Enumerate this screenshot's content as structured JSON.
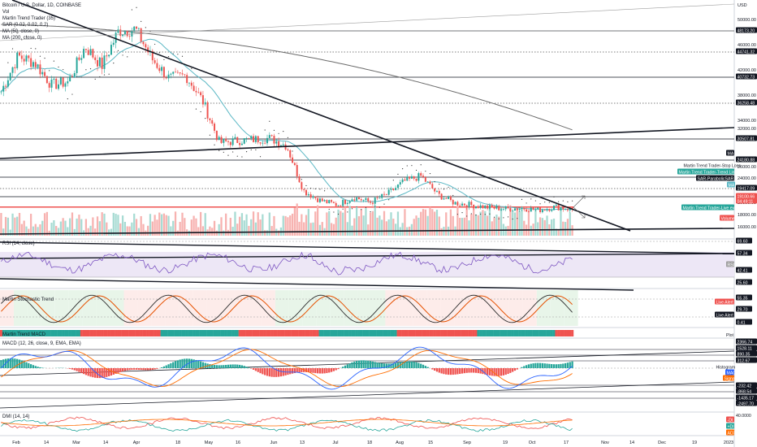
{
  "legend": {
    "symbol": "Bitcoin / U.S. Dollar, 1D, COINBASE",
    "lines": [
      "Vol",
      "Martin Trend Trader (35)",
      "SAR (0.02, 0.02, 0.2)",
      "MA (50, close, 0)",
      "MA (200, close, 0)"
    ]
  },
  "pane_titles": {
    "rsi": "RSI (14, close)",
    "stoch": "Martin Stochastic Trend",
    "mtm": "Martin Trend MACD",
    "macd": "MACD (12, 26, close, 9, EMA, EMA)",
    "dmi": "DMI (14, 14)"
  },
  "currency": "USD",
  "colors": {
    "up": "#26a69a",
    "down": "#ef5350",
    "ma50": "#5ab7c4",
    "ma200": "#6b6b6b",
    "rsi_line": "#7e57c2",
    "rsi_band": "#ede7f6",
    "stoch_k": "#2b2b2b",
    "stoch_d": "#e65100",
    "macd_line": "#2962ff",
    "signal_line": "#ff6d00",
    "dmi_plus": "#26a69a",
    "dmi_minus": "#ef5350",
    "adx": "#ff6d00",
    "hline": "#131722"
  },
  "chart_data": {
    "type": "candlestick",
    "x_axis_labels": [
      "Feb",
      "14",
      "Mar",
      "14",
      "Apr",
      "18",
      "May",
      "16",
      "Jun",
      "13",
      "Jul",
      "18",
      "Aug",
      "15",
      "Sep",
      "19",
      "Oct",
      "17",
      "Nov",
      "14",
      "Dec",
      "19",
      "2023"
    ],
    "price_axis_ticks": [
      "50000.00",
      "46000.00",
      "42000.00",
      "38000.00",
      "34000.00",
      "32000.00",
      "26000.00",
      "24000.00",
      "20000.00",
      "18000.00",
      "16000.00"
    ],
    "price_range": [
      15000,
      51000
    ],
    "price_path_weekly": [
      37500,
      43000,
      42000,
      38500,
      39000,
      44500,
      41500,
      47000,
      47200,
      42500,
      39500,
      40000,
      36000,
      29500,
      29800,
      30000,
      30200,
      29000,
      22000,
      20500,
      19800,
      21000,
      20200,
      21500,
      23500,
      24300,
      21400,
      20100,
      19800,
      19400,
      19200,
      19300,
      19000,
      19500,
      19100
    ],
    "price_levels": [
      {
        "label": "48173.20",
        "style": "solid"
      },
      {
        "label": "44741.32",
        "style": "dotted"
      },
      {
        "label": "40732.73",
        "style": "solid"
      },
      {
        "label": "36258.48",
        "style": "dotted"
      },
      {
        "label": "30507.81",
        "style": "solid"
      },
      {
        "label": "24180.88",
        "style": "solid"
      },
      {
        "label": "19417.09",
        "style": "dotted"
      },
      {
        "label": "19100.66",
        "style": "solid"
      }
    ],
    "right_tags": {
      "countdown": "04:49:11",
      "ma_badge": "MA",
      "stop_loss": "Martin Trend Trader-Stop Loss",
      "trend_line": "Martin Trend Trader-Trend Line",
      "sar_tag": "SAR-ParabolicSAR",
      "live_event": "Martin Trend Trader-Live event",
      "volume": "Volume"
    },
    "rsi_levels": [
      "69.60",
      "57.34",
      "42.41",
      "25.60"
    ],
    "rsi_badge": "RSI",
    "stoch_levels": [
      "55.35",
      "29.70",
      "0.41"
    ],
    "stoch_tags": {
      "live_alert": "Live Alert",
      "plot": "Plot"
    },
    "macd_levels": [
      "2366.74",
      "1528.11",
      "890.35",
      "312.67",
      "-232.42",
      "-868.54",
      "-1435.17",
      "-2497.70"
    ],
    "macd_tags": {
      "histogram": "Histogram",
      "macd": "MACD",
      "signal": "Signal"
    },
    "dmi_levels": [
      "40.0000"
    ],
    "dmi_tags": [
      "-DI",
      "+DI",
      "ADX"
    ]
  }
}
